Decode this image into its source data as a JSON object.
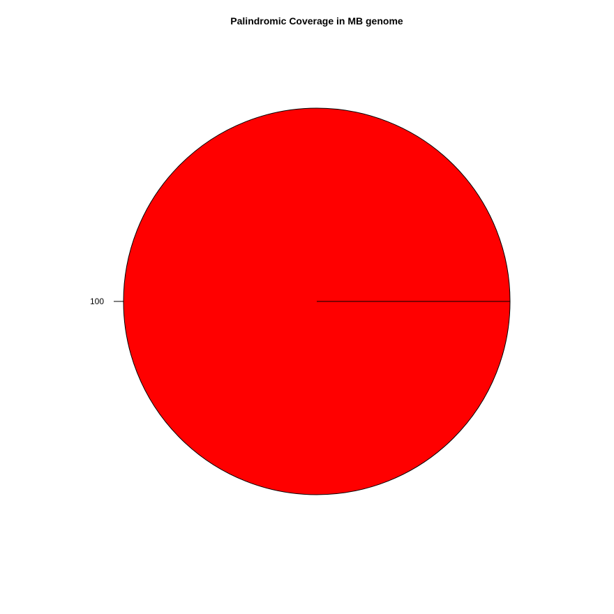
{
  "chart_data": {
    "type": "pie",
    "title": "Palindromic Coverage in MB genome",
    "slices": [
      {
        "label": "100",
        "value": 100,
        "color": "#FF0000"
      }
    ],
    "outline_color": "#000000",
    "start_angle_deg": 0,
    "direction": "counterclockwise"
  }
}
